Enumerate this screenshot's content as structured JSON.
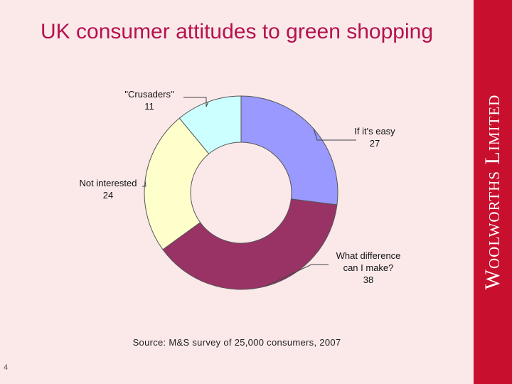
{
  "title": "UK consumer attitudes to green shopping",
  "source": "Source: M&S survey of 25,000 consumers, 2007",
  "page_number": "4",
  "brand": "Woolworths Limited",
  "colors": {
    "title": "#b5124e",
    "slide_background": "#fbe9ea",
    "side_band": "#c8102e"
  },
  "chart_data": {
    "type": "pie",
    "donut": true,
    "legend": "none",
    "labels": [
      "If it's easy",
      "What difference can I make?",
      "Not interested",
      "\"Crusaders\""
    ],
    "values": [
      27,
      38,
      24,
      11
    ],
    "colors": [
      "#9999ff",
      "#993366",
      "#ffffcc",
      "#ccffff"
    ],
    "label_text": [
      [
        "If it's easy",
        "27"
      ],
      [
        "What difference",
        "can I make?",
        "38"
      ],
      [
        "Not interested",
        "24"
      ],
      [
        "\"Crusaders\"",
        "11"
      ]
    ]
  }
}
